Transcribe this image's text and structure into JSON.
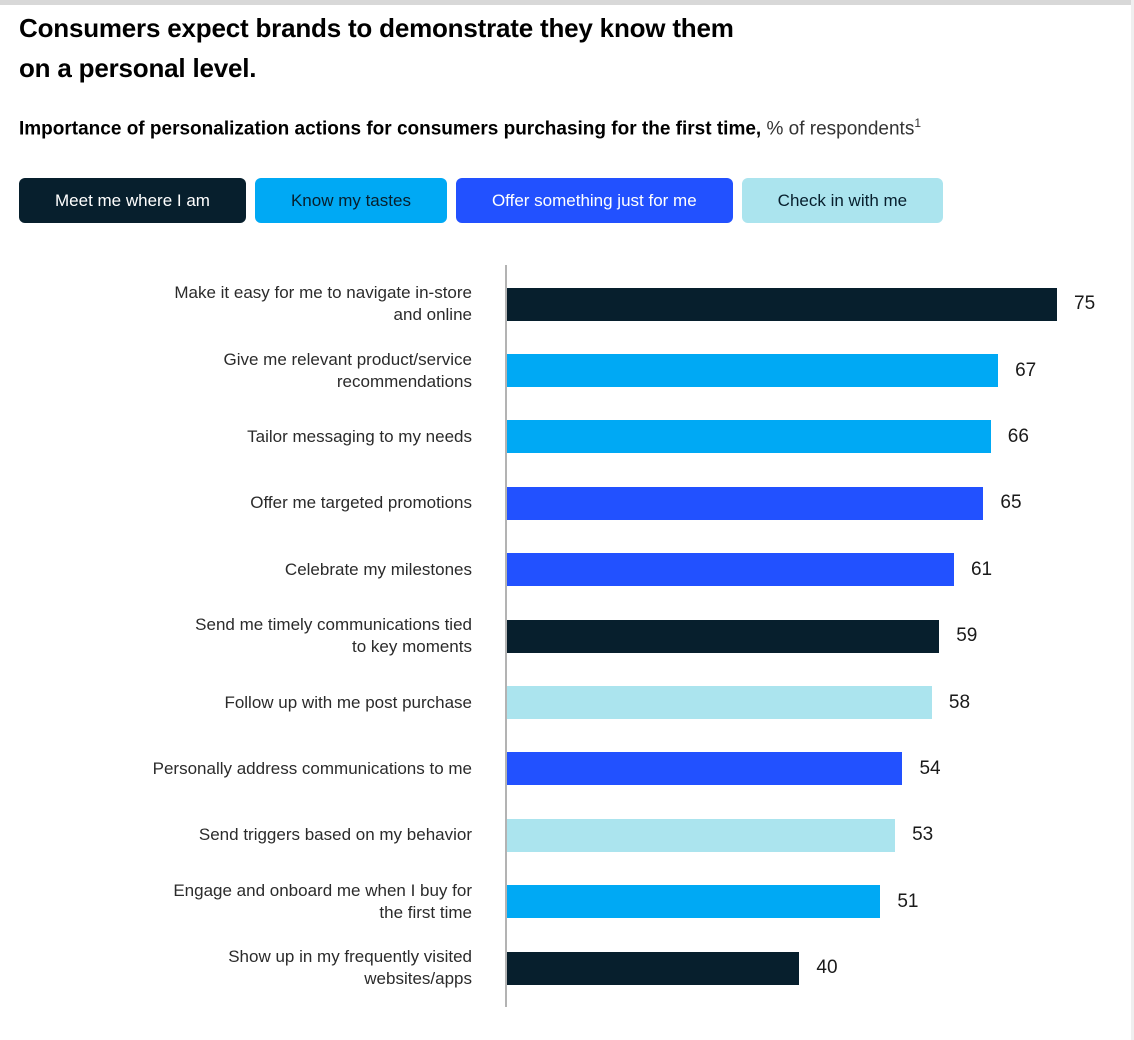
{
  "page": {
    "title": "Consumers expect brands to demonstrate they know them\non a personal level.",
    "subtitle_bold": "Importance of personalization actions for consumers purchasing for the first time,",
    "subtitle_unit": " % of respondents",
    "subtitle_footnote_marker": "1"
  },
  "legend": {
    "buttons": [
      {
        "label": "Meet me where I am",
        "key": "meet"
      },
      {
        "label": "Know my tastes",
        "key": "know"
      },
      {
        "label": "Offer something just for me",
        "key": "offer"
      },
      {
        "label": "Check in with me",
        "key": "check"
      }
    ]
  },
  "colors": {
    "meet": "#071f2d",
    "know": "#00a9f4",
    "offer": "#2251ff",
    "check": "#abe4ee",
    "text_on_dark": "#ffffff",
    "text_on_light": "#071f2d",
    "axis": "#b3b3b3"
  },
  "chart_data": {
    "type": "bar",
    "orientation": "horizontal",
    "title": "Importance of personalization actions for consumers purchasing for the first time",
    "unit": "% of respondents",
    "xlim": [
      0,
      85
    ],
    "grid": false,
    "legend_position": "top",
    "value_labels": true,
    "series": [
      {
        "name": "Meet me where I am",
        "key": "meet"
      },
      {
        "name": "Know my tastes",
        "key": "know"
      },
      {
        "name": "Offer something just for me",
        "key": "offer"
      },
      {
        "name": "Check in with me",
        "key": "check"
      }
    ],
    "bars": [
      {
        "label": "Make it easy for me to navigate in-store\nand online",
        "value": 75,
        "group": "meet"
      },
      {
        "label": "Give me relevant product/service\nrecommendations",
        "value": 67,
        "group": "know"
      },
      {
        "label": "Tailor messaging to my needs",
        "value": 66,
        "group": "know"
      },
      {
        "label": "Offer me targeted promotions",
        "value": 65,
        "group": "offer"
      },
      {
        "label": "Celebrate my milestones",
        "value": 61,
        "group": "offer"
      },
      {
        "label": "Send me timely communications tied\nto key moments",
        "value": 59,
        "group": "meet"
      },
      {
        "label": "Follow up with me post purchase",
        "value": 58,
        "group": "check"
      },
      {
        "label": "Personally address communications to me",
        "value": 54,
        "group": "offer"
      },
      {
        "label": "Send triggers based on my behavior",
        "value": 53,
        "group": "check"
      },
      {
        "label": "Engage and onboard me when I buy for\nthe first time",
        "value": 51,
        "group": "know"
      },
      {
        "label": "Show up in my frequently visited\nwebsites/apps",
        "value": 40,
        "group": "meet"
      }
    ]
  }
}
